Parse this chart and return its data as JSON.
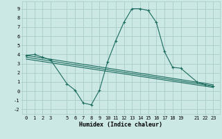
{
  "xlabel": "Humidex (Indice chaleur)",
  "bg_color": "#cce8e4",
  "grid_color": "#a8ccc8",
  "line_color": "#1a6b5e",
  "x_ticks": [
    0,
    1,
    2,
    3,
    5,
    6,
    7,
    8,
    9,
    10,
    11,
    12,
    13,
    14,
    15,
    16,
    17,
    18,
    19,
    21,
    22,
    23
  ],
  "line1_x": [
    0,
    1,
    2,
    3,
    5,
    6,
    7,
    8,
    9,
    10,
    11,
    12,
    13,
    14,
    15,
    16,
    17,
    18,
    19,
    21,
    22,
    23
  ],
  "line1_y": [
    3.9,
    4.0,
    3.7,
    3.4,
    0.8,
    0.1,
    -1.3,
    -1.5,
    0.1,
    3.2,
    5.5,
    7.5,
    9.0,
    9.0,
    8.8,
    7.5,
    4.3,
    2.6,
    2.5,
    1.0,
    0.7,
    0.5
  ],
  "line2_x": [
    0,
    23
  ],
  "line2_y": [
    3.9,
    0.7
  ],
  "line3_x": [
    0,
    23
  ],
  "line3_y": [
    3.7,
    0.55
  ],
  "line4_x": [
    0,
    23
  ],
  "line4_y": [
    3.5,
    0.4
  ],
  "ylim": [
    -2.5,
    9.8
  ],
  "xlim": [
    -0.5,
    23.8
  ],
  "yticks": [
    -2,
    -1,
    0,
    1,
    2,
    3,
    4,
    5,
    6,
    7,
    8,
    9
  ],
  "ylabel_fontsize": 5.5,
  "xlabel_fontsize": 6.0,
  "tick_fontsize": 5.0
}
